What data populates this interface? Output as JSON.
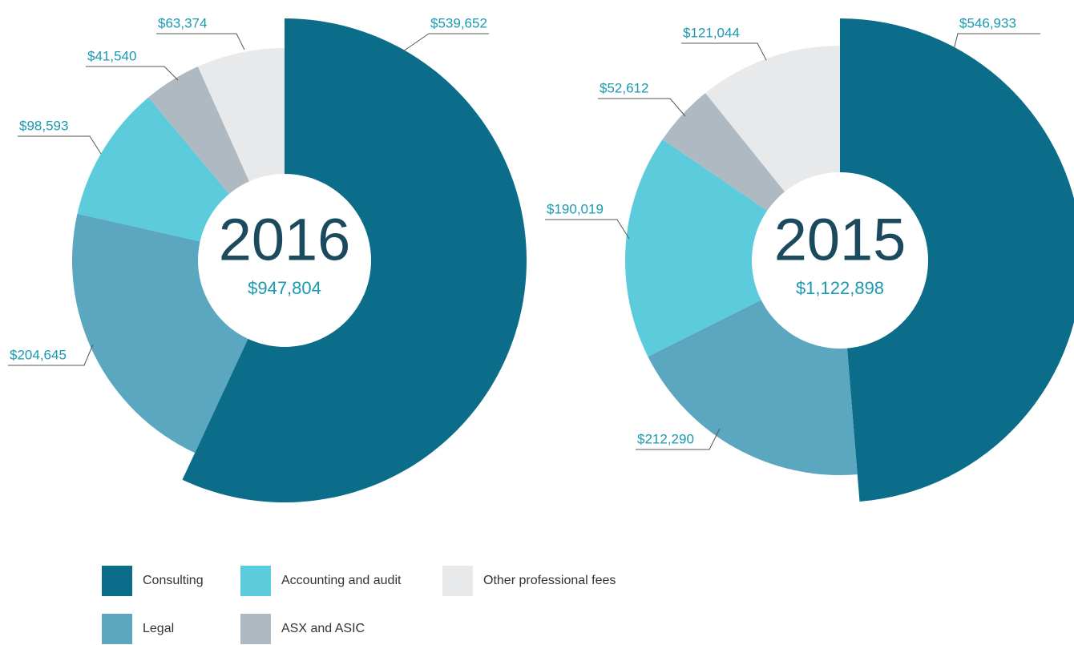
{
  "chart_data": [
    {
      "type": "pie",
      "title": "2016",
      "subtitle": "$947,804",
      "categories": [
        "Consulting",
        "Legal",
        "Accounting and audit",
        "ASX and ASIC",
        "Other professional fees"
      ],
      "values": [
        539652,
        204645,
        98593,
        41540,
        63374
      ],
      "value_labels": [
        "$539,652",
        "$204,645",
        "$98,593",
        "$41,540",
        "$63,374"
      ],
      "colors": [
        "#0b6d8a",
        "#5aa7bf",
        "#5ccbdc",
        "#aeb9c2",
        "#e8e9eb"
      ]
    },
    {
      "type": "pie",
      "title": "2015",
      "subtitle": "$1,122,898",
      "categories": [
        "Consulting",
        "Legal",
        "Accounting and audit",
        "ASX and ASIC",
        "Other professional fees"
      ],
      "values": [
        546933,
        212290,
        190019,
        52612,
        121044
      ],
      "value_labels": [
        "$546,933",
        "$212,290",
        "$190,019",
        "$52,612",
        "$121,044"
      ],
      "colors": [
        "#0b6d8a",
        "#5aa7bf",
        "#5ccbdc",
        "#aeb9c2",
        "#e8e9eb"
      ]
    }
  ]
}
